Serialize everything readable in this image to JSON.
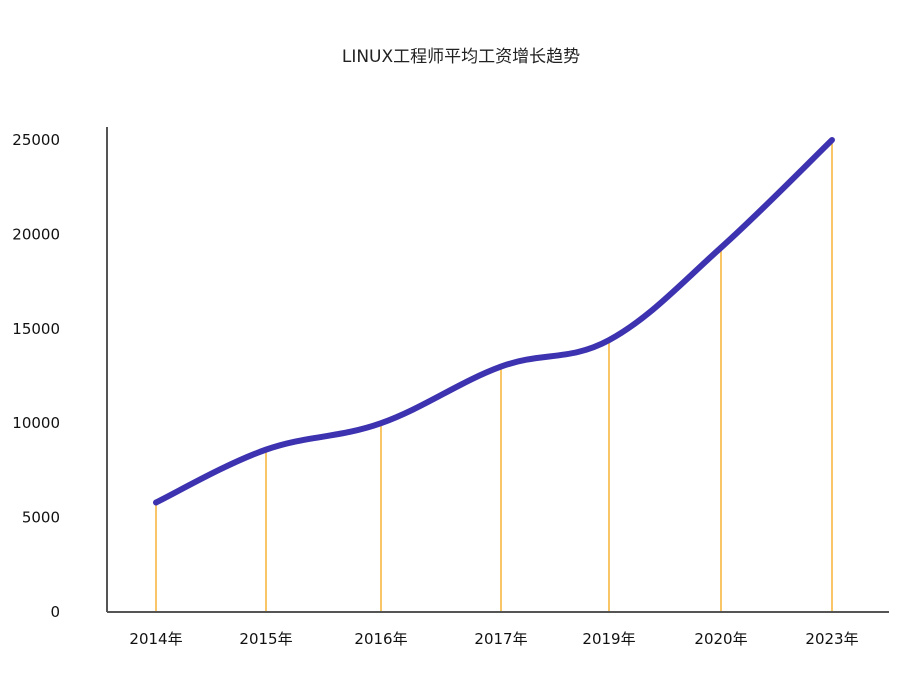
{
  "chart_data": {
    "type": "line",
    "title": "LINUX工程师平均工资增长趋势",
    "xlabel": "",
    "ylabel": "",
    "categories": [
      "2014年",
      "2015年",
      "2016年",
      "2017年",
      "2019年",
      "2020年",
      "2023年"
    ],
    "series": [
      {
        "values": [
          5800,
          8600,
          10000,
          13000,
          14400,
          19300,
          25000
        ]
      }
    ],
    "ylim": [
      0,
      25000
    ],
    "yticks": [
      0,
      5000,
      10000,
      15000,
      20000,
      25000
    ],
    "grid": false,
    "legend": "none",
    "colors": {
      "line": "#3d33b0",
      "drop_lines": "#f5b335",
      "axis": "#555555"
    }
  }
}
